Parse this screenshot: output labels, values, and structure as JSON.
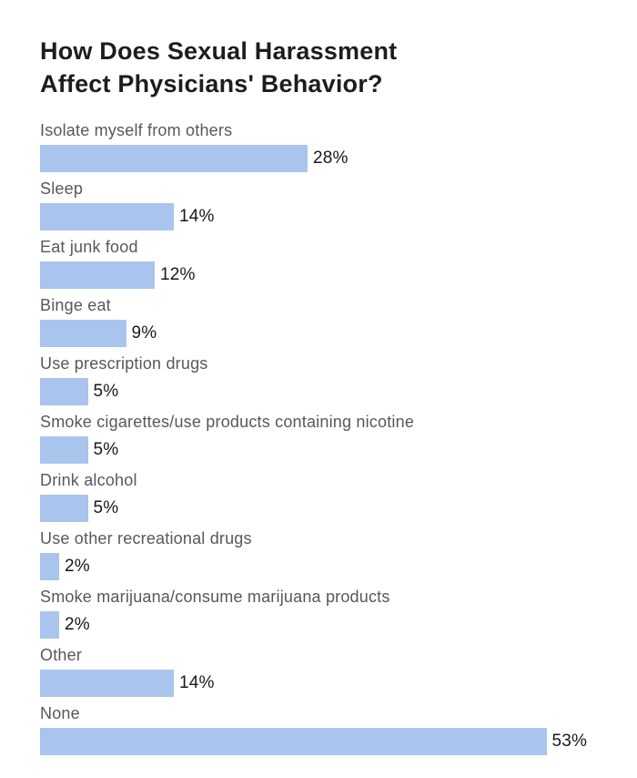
{
  "page": {
    "background": "#ffffff"
  },
  "chart_data": {
    "type": "bar",
    "orientation": "horizontal",
    "title": "How Does Sexual Harassment\nAffect Physicians' Behavior?",
    "categories": [
      "Isolate myself from others",
      "Sleep",
      "Eat junk food",
      "Binge eat",
      "Use prescription drugs",
      "Smoke cigarettes/use products containing nicotine",
      "Drink alcohol",
      "Use other recreational drugs",
      "Smoke marijuana/consume marijuana products",
      "Other",
      "None"
    ],
    "values": [
      28,
      14,
      12,
      9,
      5,
      5,
      5,
      2,
      2,
      14,
      53
    ],
    "value_labels": [
      "28%",
      "14%",
      "12%",
      "9%",
      "5%",
      "5%",
      "5%",
      "2%",
      "2%",
      "14%",
      "53%"
    ],
    "value_suffix": "%",
    "xlim": [
      0,
      58
    ],
    "grid": false,
    "legend": false,
    "axes_shown": false
  },
  "colors": {
    "bar_fill": "#a9c5ee",
    "title_text": "#1d1d1f",
    "category_label_text": "#56585e",
    "value_label_text": "#17181a",
    "background": "#ffffff"
  }
}
